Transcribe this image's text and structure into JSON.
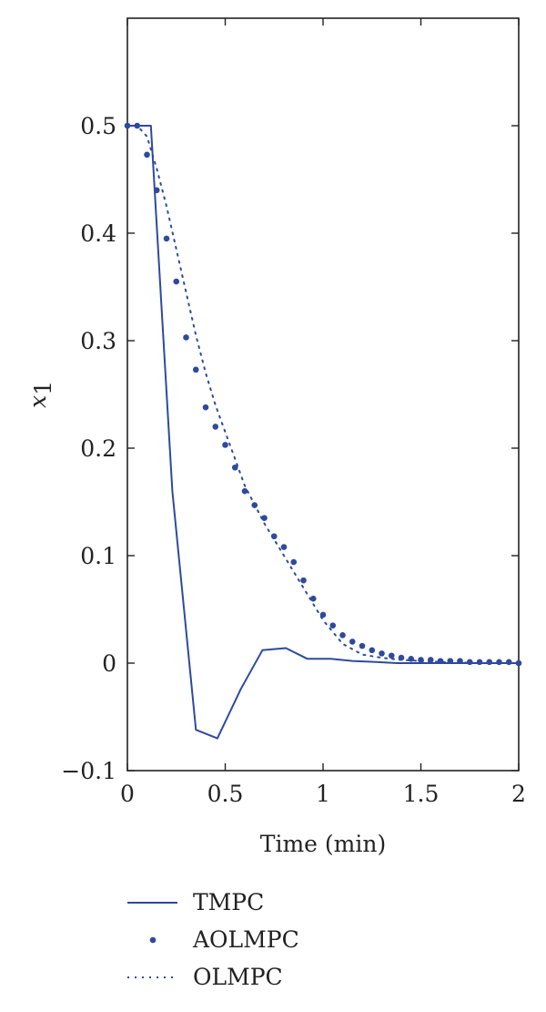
{
  "chart_data": {
    "type": "line",
    "xlabel": "Time (min)",
    "ylabel_main": "x",
    "ylabel_sub": "1",
    "xlim": [
      0,
      2
    ],
    "ylim": [
      -0.1,
      0.6
    ],
    "xticks": [
      0,
      0.5,
      1,
      1.5,
      2
    ],
    "xtick_labels": [
      "0",
      "0.5",
      "1",
      "1.5",
      "2"
    ],
    "yticks": [
      -0.1,
      0,
      0.1,
      0.2,
      0.3,
      0.4,
      0.5
    ],
    "ytick_labels": [
      "−0.1",
      "0",
      "0.1",
      "0.2",
      "0.3",
      "0.4",
      "0.5"
    ],
    "grid": false,
    "legend_position": "bottom",
    "color": "#2e4a9e",
    "series": [
      {
        "name": "TMPC",
        "style": "solid",
        "x": [
          0,
          0.12,
          0.23,
          0.35,
          0.46,
          0.58,
          0.69,
          0.81,
          0.92,
          1.04,
          1.15,
          1.27,
          1.38,
          1.5,
          2.0
        ],
        "y": [
          0.5,
          0.5,
          0.16,
          -0.062,
          -0.07,
          -0.024,
          0.012,
          0.014,
          0.004,
          0.004,
          0.002,
          0.001,
          0.0,
          0.0,
          0.0
        ]
      },
      {
        "name": "AOLMPC",
        "style": "dots",
        "x": [
          0,
          0.05,
          0.1,
          0.15,
          0.2,
          0.25,
          0.3,
          0.35,
          0.4,
          0.45,
          0.5,
          0.55,
          0.6,
          0.65,
          0.7,
          0.75,
          0.8,
          0.85,
          0.9,
          0.95,
          1.0,
          1.05,
          1.1,
          1.15,
          1.2,
          1.25,
          1.3,
          1.35,
          1.4,
          1.45,
          1.5,
          1.55,
          1.6,
          1.65,
          1.7,
          1.75,
          1.8,
          1.85,
          1.9,
          1.95,
          2.0
        ],
        "y": [
          0.5,
          0.5,
          0.473,
          0.44,
          0.395,
          0.355,
          0.303,
          0.273,
          0.238,
          0.22,
          0.203,
          0.182,
          0.16,
          0.147,
          0.135,
          0.118,
          0.108,
          0.094,
          0.077,
          0.06,
          0.045,
          0.035,
          0.026,
          0.02,
          0.016,
          0.012,
          0.009,
          0.007,
          0.005,
          0.004,
          0.003,
          0.003,
          0.002,
          0.002,
          0.002,
          0.001,
          0.001,
          0.001,
          0.001,
          0.001,
          0.0
        ]
      },
      {
        "name": "OLMPC",
        "style": "dotted",
        "x": [
          0,
          0.05,
          0.1,
          0.15,
          0.2,
          0.25,
          0.3,
          0.35,
          0.4,
          0.45,
          0.5,
          0.55,
          0.6,
          0.7,
          0.8,
          0.9,
          1.0,
          1.1,
          1.2,
          1.3,
          1.4,
          1.5,
          1.6,
          1.8,
          2.0
        ],
        "y": [
          0.5,
          0.5,
          0.49,
          0.46,
          0.425,
          0.385,
          0.345,
          0.305,
          0.27,
          0.24,
          0.215,
          0.19,
          0.165,
          0.13,
          0.1,
          0.07,
          0.04,
          0.018,
          0.008,
          0.005,
          0.003,
          0.002,
          0.001,
          0.0,
          0.0
        ]
      }
    ]
  }
}
